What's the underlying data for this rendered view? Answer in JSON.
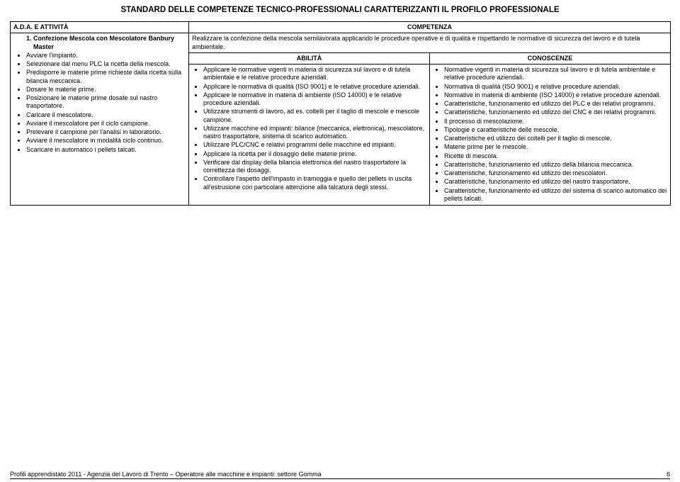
{
  "title": "STANDARD DELLE COMPETENZE TECNICO-PROFESSIONALI CARATTERIZZANTI IL PROFILO PROFESSIONALE",
  "headers": {
    "ada": "A.D.A. E ATTIVITÀ",
    "competenza": "COMPETENZA",
    "abilita": "ABILITÀ",
    "conoscenze": "CONOSCENZE"
  },
  "activity_numbered": "Confezione Mescola con Mescolatore Banbury Master",
  "activities": [
    "Avviare l'impianto.",
    "Selezionare dal menu PLC la ricetta della mescola.",
    "Predisporre le materie prime richieste dalla ricetta sulla bilancia meccanica.",
    "Dosare le materie prime.",
    "Posizionare le materie prime dosate sul nastro trasportatore.",
    "Caricare il mescolatore.",
    "Avviare il mescolatore per il ciclo campione.",
    "Prelevare il campione per l'analisi in laboratorio.",
    "Avviare il mescolatore in modalità ciclo continuo.",
    "Scaricare in automatico i pellets talcati."
  ],
  "competenza_text": "Realizzare la confezione della mescola semilavorata applicando le procedure operative e di qualità e rispettando le normative di sicurezza del lavoro e di tutela ambientale.",
  "abilita": [
    "Applicare le normative vigenti in materia di sicurezza sul lavoro e di tutela ambientale e le relative procedure aziendali.",
    "Applicare le normativa di qualità (ISO 9001) e le relative procedure aziendali.",
    "Applicare le normative in materia di ambiente (ISO 14000) e le relative procedure aziendali.",
    "Utilizzare strumenti di lavoro, ad es. coltelli per il taglio di mescole e mescole campione.",
    "Utilizzare macchine ed impianti: bilance (meccanica, elettronica), mescolatore, nastro trasportatore, sistema di scarico automatico.",
    "Utilizzare PLC/CNC e relativi programmi delle macchine ed impianti.",
    "Applicare la ricetta per il dosaggio delle materie prime.",
    "Verificare dal display della bilancia elettronica del nastro trasportatore la correttezza dei dosaggi.",
    "Controllare l'aspetto dell'impasto in tramoggia e quello dei pellets in uscita all'estrusione con particolare attenzione alla talcatura degli stessi."
  ],
  "conoscenze": [
    "Normative vigenti in materia di sicurezza sul lavoro e di tutela ambientale e relative procedure aziendali.",
    "Normativa di qualità (ISO 9001) e relative procedure aziendali.",
    "Normative in materia di ambiente (ISO 14000) e relative procedure aziendali.",
    "Caratteristiche, funzionamento ed utilizzo del PLC e dei relativi programmi.",
    "Caratteristiche, funzionamento ed utilizzo del CNC e dei relativi programmi.",
    "Il processo di mescolazione.",
    "Tipologie e caratteristiche delle mescole.",
    "Caratteristiche ed utilizzo dei coltelli per il taglio di mescole.",
    "Materie prime per le mescole.",
    "Ricette di mescola.",
    "Caratteristiche, funzionamento ed utilizzo della bilancia meccanica.",
    "Caratteristiche, funzionamento ed utilizzo dei mescolatori.",
    "Caratteristiche, funzionamento ed utilizzo del nastro trasportatore.",
    "Caratteristiche, funzionamento ed utilizzo del sistema di scarico automatico dei pellets talcati."
  ],
  "footer_left": "Profili apprendistato  2011 -  Agenzia del Lavoro di Trento – Operatore alle macchine e impianti: settore Gomma",
  "footer_page": "6"
}
